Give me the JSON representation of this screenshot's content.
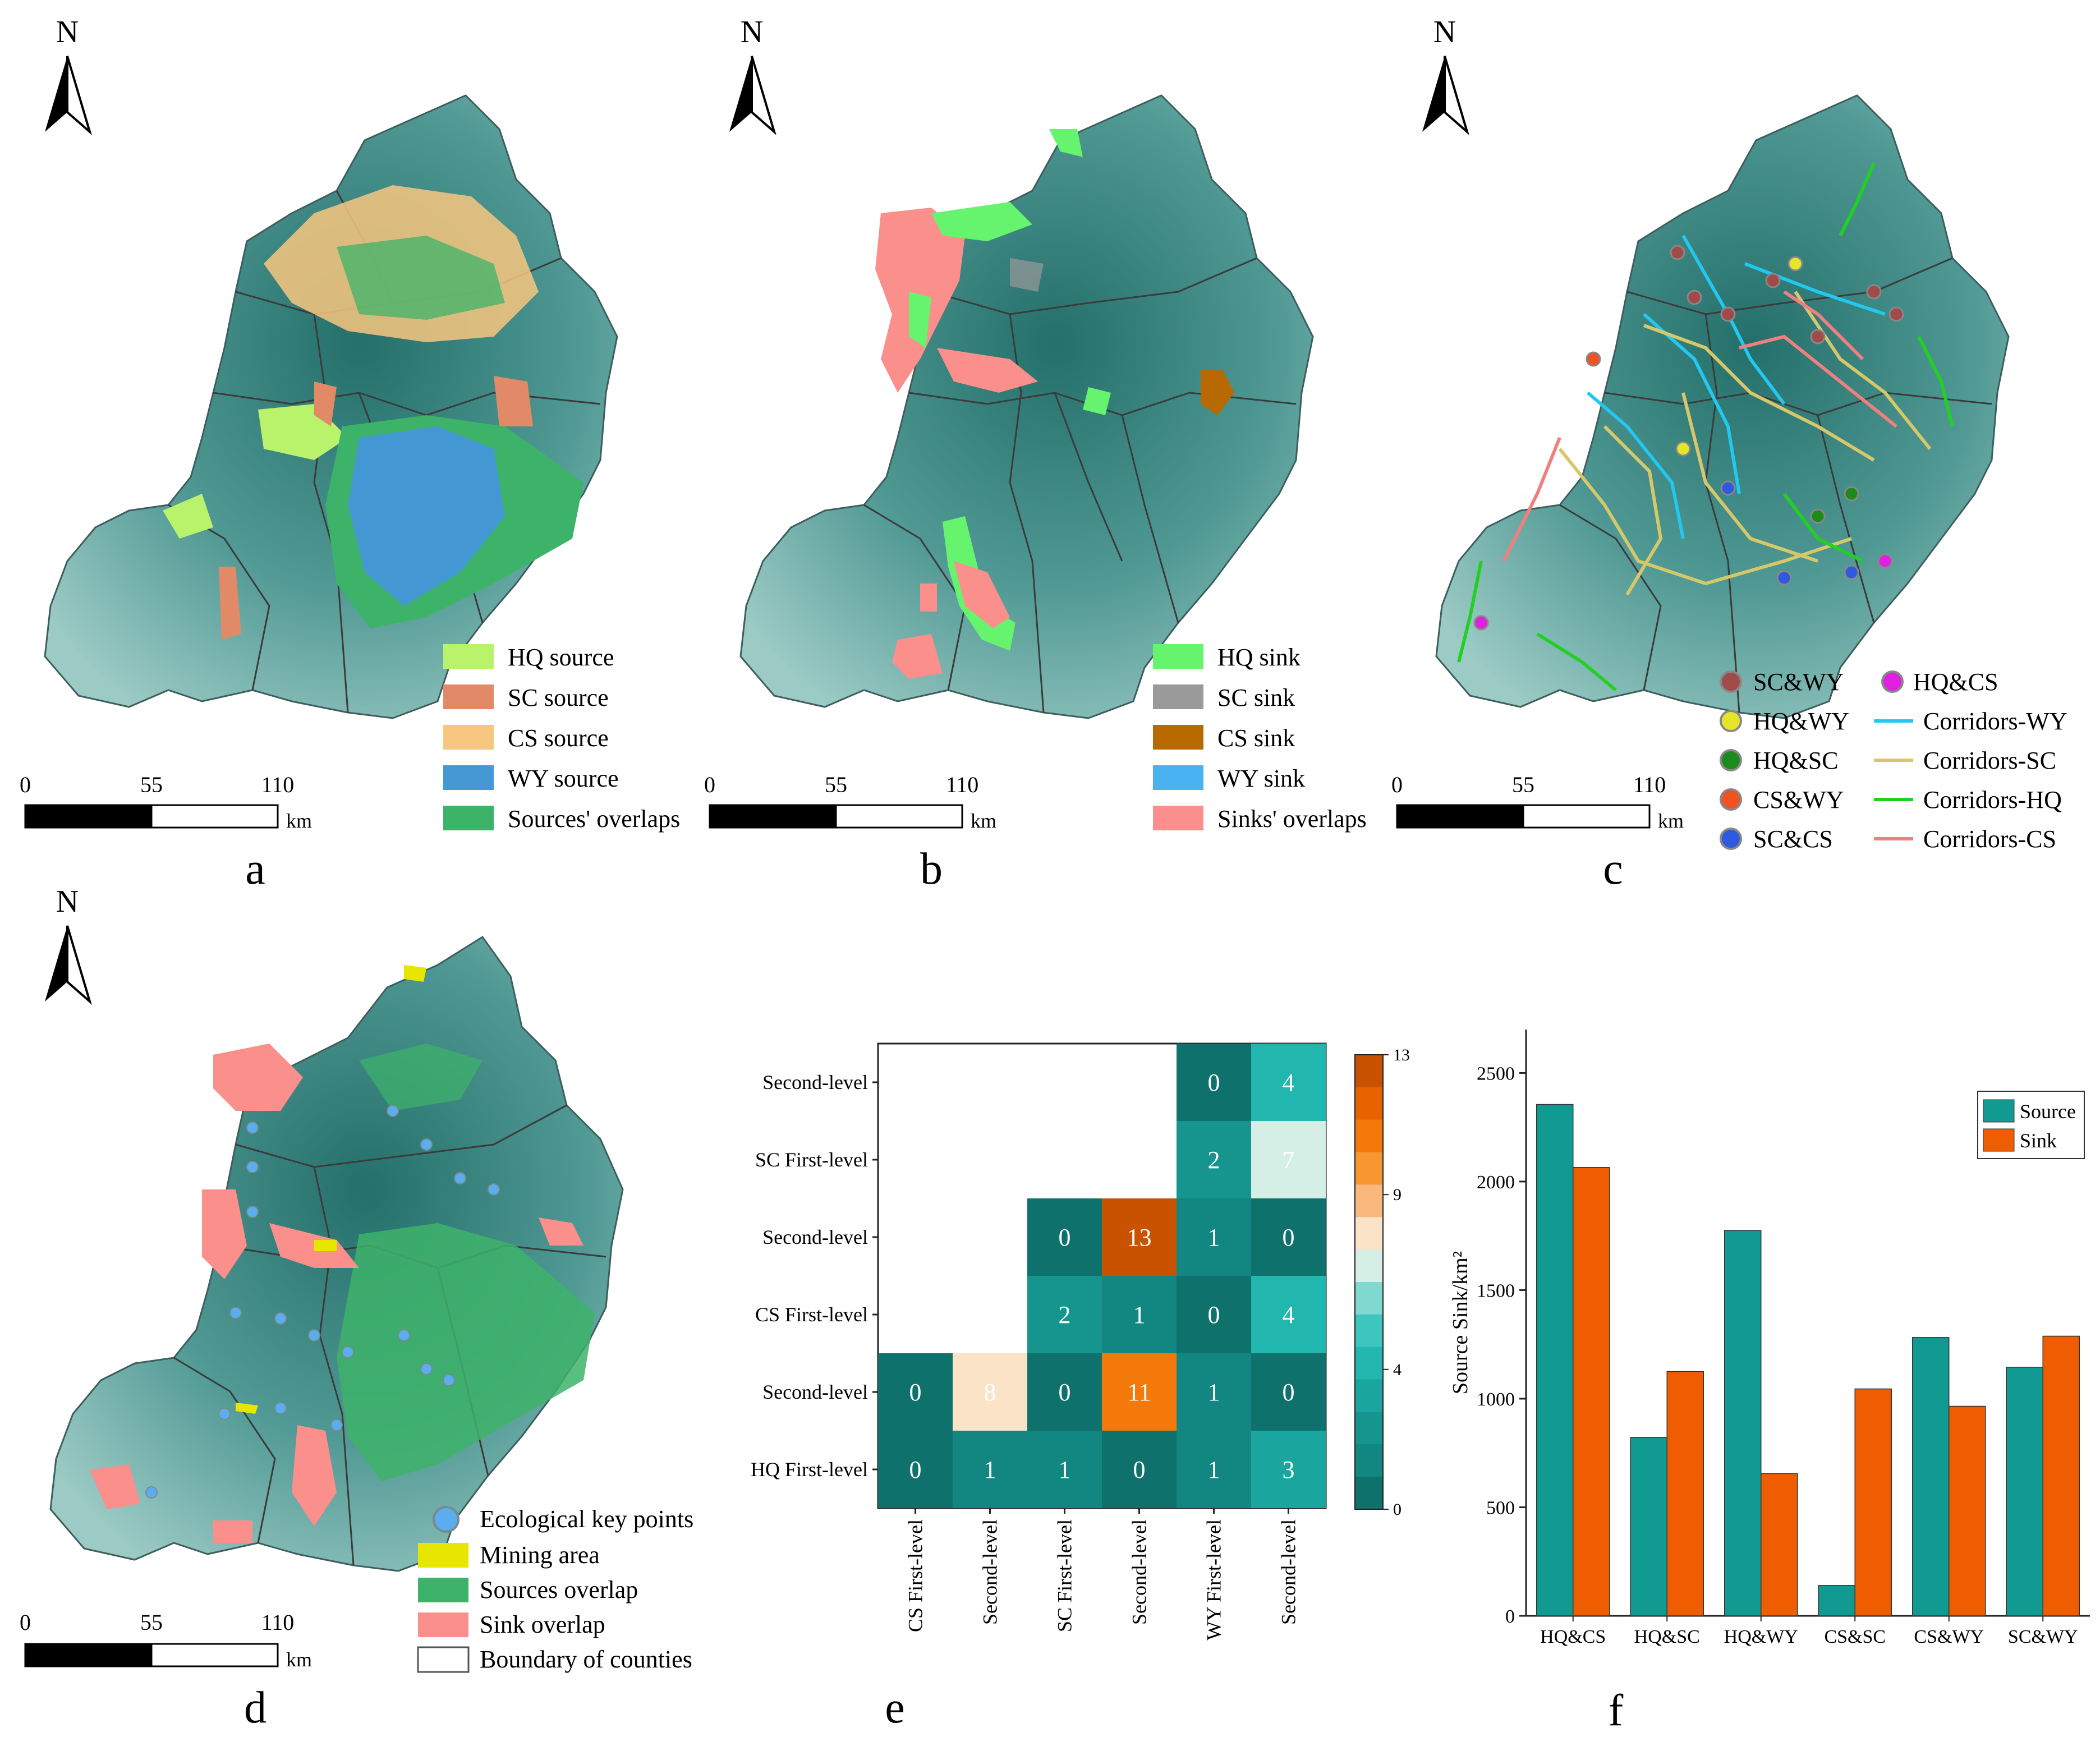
{
  "colors": {
    "terrain_dark": "#2d7b77",
    "terrain_mid": "#6aa9a4",
    "terrain_light": "#a6d1cc",
    "hq": "#b9f26b",
    "sc": "#e28a68",
    "cs": "#f8c77f",
    "wy": "#4499d4",
    "overlap_source": "#3db36a",
    "hq_sink": "#66f46e",
    "sc_sink": "#9a9a9a",
    "cs_sink": "#b86a00",
    "wy_sink": "#49b3f2",
    "overlap_sink": "#fb8f8c",
    "teal": "#119a92",
    "orange": "#f05d00"
  },
  "panels": {
    "a": {
      "label": "a",
      "north": "N",
      "scale": {
        "ticks": [
          "0",
          "55",
          "110"
        ],
        "unit": "km"
      },
      "legend": [
        {
          "label": "HQ source",
          "color": "#b9f26b"
        },
        {
          "label": "SC source",
          "color": "#e28a68"
        },
        {
          "label": "CS source",
          "color": "#f8c77f"
        },
        {
          "label": "WY source",
          "color": "#4499d4"
        },
        {
          "label": "Sources' overlaps",
          "color": "#3db36a"
        }
      ]
    },
    "b": {
      "label": "b",
      "north": "N",
      "scale": {
        "ticks": [
          "0",
          "55",
          "110"
        ],
        "unit": "km"
      },
      "legend": [
        {
          "label": "HQ sink",
          "color": "#66f46e"
        },
        {
          "label": "SC sink",
          "color": "#9a9a9a"
        },
        {
          "label": "CS sink",
          "color": "#b86a00"
        },
        {
          "label": "WY sink",
          "color": "#49b3f2"
        },
        {
          "label": "Sinks' overlaps",
          "color": "#fb8f8c"
        }
      ]
    },
    "c": {
      "label": "c",
      "north": "N",
      "scale": {
        "ticks": [
          "0",
          "55",
          "110"
        ],
        "unit": "km"
      },
      "legend_points": [
        {
          "label": "SC&WY",
          "color": "#a14a4a"
        },
        {
          "label": "HQ&WY",
          "color": "#e5e52a"
        },
        {
          "label": "HQ&SC",
          "color": "#1e8a1e"
        },
        {
          "label": "CS&WY",
          "color": "#f0531f"
        },
        {
          "label": "SC&CS",
          "color": "#2e5ae0"
        },
        {
          "label": "HQ&CS",
          "color": "#e020e0"
        }
      ],
      "legend_lines": [
        {
          "label": "Corridors-WY",
          "color": "#22c8f0"
        },
        {
          "label": "Corridors-SC",
          "color": "#d6c86a"
        },
        {
          "label": "Corridors-HQ",
          "color": "#22d022"
        },
        {
          "label": "Corridors-CS",
          "color": "#f08080"
        }
      ]
    },
    "d": {
      "label": "d",
      "north": "N",
      "scale": {
        "ticks": [
          "0",
          "55",
          "110"
        ],
        "unit": "km"
      },
      "legend": [
        {
          "label": "Ecological key points",
          "color": "#5aaef0",
          "shape": "circle"
        },
        {
          "label": "Mining area",
          "color": "#e6e600",
          "shape": "rect"
        },
        {
          "label": "Sources overlap",
          "color": "#3db36a",
          "shape": "rect"
        },
        {
          "label": "Sink overlap",
          "color": "#fb8f8c",
          "shape": "rect"
        },
        {
          "label": "Boundary of counties",
          "color": "#ffffff",
          "shape": "rect"
        }
      ]
    },
    "e": {
      "label": "e",
      "y_labels": [
        "Second-level",
        "SC First-level",
        "Second-level",
        "CS First-level",
        "Second-level",
        "HQ First-level"
      ],
      "x_labels": [
        "CS First-level",
        "Second-level",
        "SC First-level",
        "Second-level",
        "WY First-level",
        "Second-level"
      ],
      "matrix": [
        [
          null,
          null,
          null,
          null,
          0,
          4
        ],
        [
          null,
          null,
          null,
          null,
          2,
          7
        ],
        [
          null,
          null,
          0,
          13,
          1,
          0
        ],
        [
          null,
          null,
          2,
          1,
          0,
          4
        ],
        [
          0,
          8,
          0,
          11,
          1,
          0
        ],
        [
          0,
          1,
          1,
          0,
          1,
          3
        ]
      ],
      "colorbar_ticks": [
        "13",
        "9",
        "4",
        "0"
      ]
    }
  },
  "chart_data": {
    "type": "bar",
    "title": "",
    "xlabel": "",
    "ylabel": "Source Sink/km²",
    "categories": [
      "HQ&CS",
      "HQ&SC",
      "HQ&WY",
      "CS&SC",
      "CS&WY",
      "SC&WY"
    ],
    "series": [
      {
        "name": "Source",
        "values": [
          2355,
          822,
          1775,
          140,
          1282,
          1145
        ]
      },
      {
        "name": "Sink",
        "values": [
          2065,
          1125,
          655,
          1045,
          965,
          1288
        ]
      }
    ],
    "ylim": [
      0,
      2700
    ],
    "yticks": [
      "0",
      "500",
      "1000",
      "1500",
      "2000",
      "2500"
    ],
    "panel_label": "f"
  }
}
